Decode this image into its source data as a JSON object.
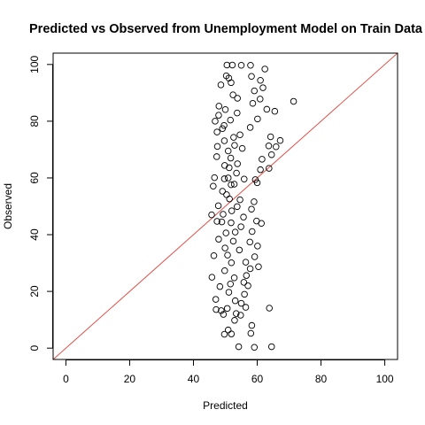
{
  "chart_data": {
    "type": "scatter",
    "title": "Predicted vs Observed from Unemployment Model on Train Data",
    "xlabel": "Predicted",
    "ylabel": "Observed",
    "xlim": [
      -4,
      104
    ],
    "ylim": [
      -4,
      104
    ],
    "x_ticks": [
      0,
      20,
      40,
      60,
      80,
      100
    ],
    "y_ticks": [
      0,
      20,
      40,
      60,
      80,
      100
    ],
    "grid": false,
    "reference_line": {
      "slope": 1,
      "intercept": 0,
      "color": "#e0504a"
    },
    "point_style": {
      "shape": "open-circle",
      "color": "#000000"
    },
    "series": [
      {
        "values": [
          [
            50.5,
            99.8
          ],
          [
            52.2,
            99.8
          ],
          [
            55.0,
            99.7
          ],
          [
            57.9,
            99.7
          ],
          [
            62.4,
            98.4
          ],
          [
            50.3,
            96.0
          ],
          [
            51.1,
            95.2
          ],
          [
            58.2,
            95.8
          ],
          [
            61.0,
            94.4
          ],
          [
            59.1,
            90.7
          ],
          [
            61.8,
            91.8
          ],
          [
            71.4,
            87.0
          ],
          [
            52.4,
            89.3
          ],
          [
            53.8,
            88.1
          ],
          [
            60.9,
            87.8
          ],
          [
            58.6,
            86.3
          ],
          [
            63.0,
            84.2
          ],
          [
            65.5,
            83.5
          ],
          [
            60.1,
            80.8
          ],
          [
            47.9,
            82.1
          ],
          [
            49.6,
            78.5
          ],
          [
            57.8,
            77.8
          ],
          [
            64.2,
            74.5
          ],
          [
            67.2,
            73.2
          ],
          [
            63.6,
            71.3
          ],
          [
            65.9,
            71.0
          ],
          [
            64.5,
            68.2
          ],
          [
            61.5,
            66.6
          ],
          [
            63.7,
            63.4
          ],
          [
            61.0,
            62.9
          ],
          [
            59.4,
            59.4
          ],
          [
            60.0,
            58.3
          ],
          [
            59.0,
            51.6
          ],
          [
            58.2,
            49.0
          ],
          [
            59.8,
            44.8
          ],
          [
            61.3,
            44.0
          ],
          [
            58.4,
            41.1
          ],
          [
            57.7,
            37.4
          ],
          [
            60.1,
            36.0
          ],
          [
            59.2,
            32.2
          ],
          [
            56.4,
            30.3
          ],
          [
            60.4,
            28.7
          ],
          [
            57.8,
            28.0
          ],
          [
            56.6,
            25.6
          ],
          [
            55.8,
            23.2
          ],
          [
            57.1,
            22.0
          ],
          [
            56.0,
            19.0
          ],
          [
            55.0,
            15.8
          ],
          [
            56.4,
            14.4
          ],
          [
            63.8,
            14.1
          ],
          [
            47.1,
            13.6
          ],
          [
            49.4,
            11.9
          ],
          [
            54.8,
            11.6
          ],
          [
            52.9,
            9.8
          ],
          [
            58.3,
            8.0
          ],
          [
            50.9,
            6.4
          ],
          [
            49.7,
            4.9
          ],
          [
            51.9,
            5.0
          ],
          [
            54.2,
            0.5
          ],
          [
            59.1,
            0.3
          ],
          [
            64.5,
            0.5
          ],
          [
            58.0,
            5.2
          ],
          [
            47.0,
            17.2
          ],
          [
            45.8,
            25.0
          ],
          [
            46.4,
            32.6
          ],
          [
            47.4,
            44.7
          ],
          [
            45.7,
            47.0
          ],
          [
            46.2,
            57.1
          ],
          [
            46.6,
            60.1
          ],
          [
            47.3,
            67.5
          ],
          [
            47.5,
            71.1
          ],
          [
            47.4,
            76.2
          ],
          [
            46.8,
            80.0
          ],
          [
            48.0,
            85.3
          ],
          [
            48.6,
            92.8
          ],
          [
            51.8,
            93.6
          ],
          [
            50.0,
            84.1
          ],
          [
            49.1,
            77.4
          ],
          [
            52.9,
            71.5
          ],
          [
            51.7,
            67.0
          ],
          [
            54.6,
            75.2
          ],
          [
            55.3,
            70.4
          ],
          [
            53.8,
            65.0
          ],
          [
            49.8,
            64.4
          ],
          [
            50.9,
            60.0
          ],
          [
            52.8,
            57.8
          ],
          [
            55.9,
            59.6
          ],
          [
            49.1,
            55.3
          ],
          [
            51.3,
            52.6
          ],
          [
            54.6,
            52.3
          ],
          [
            47.8,
            50.2
          ],
          [
            52.0,
            48.4
          ],
          [
            55.7,
            46.2
          ],
          [
            48.9,
            44.5
          ],
          [
            50.2,
            40.6
          ],
          [
            53.1,
            40.9
          ],
          [
            47.9,
            38.4
          ],
          [
            49.9,
            35.3
          ],
          [
            54.4,
            34.6
          ],
          [
            51.9,
            30.1
          ],
          [
            49.8,
            27.3
          ],
          [
            52.8,
            24.8
          ],
          [
            48.3,
            21.7
          ],
          [
            51.1,
            19.7
          ],
          [
            53.1,
            16.7
          ],
          [
            50.6,
            14.0
          ],
          [
            48.7,
            13.2
          ],
          [
            53.4,
            12.2
          ],
          [
            51.6,
            22.6
          ],
          [
            50.7,
            32.8
          ],
          [
            52.5,
            37.7
          ],
          [
            54.9,
            42.8
          ],
          [
            49.3,
            47.2
          ],
          [
            51.8,
            44.2
          ],
          [
            53.7,
            49.9
          ],
          [
            50.4,
            54.1
          ],
          [
            51.8,
            57.6
          ],
          [
            49.7,
            59.7
          ],
          [
            53.5,
            61.7
          ],
          [
            51.2,
            63.6
          ],
          [
            50.9,
            69.5
          ],
          [
            52.6,
            74.3
          ],
          [
            49.7,
            73.1
          ],
          [
            51.6,
            80.4
          ],
          [
            53.7,
            82.9
          ]
        ]
      }
    ]
  }
}
